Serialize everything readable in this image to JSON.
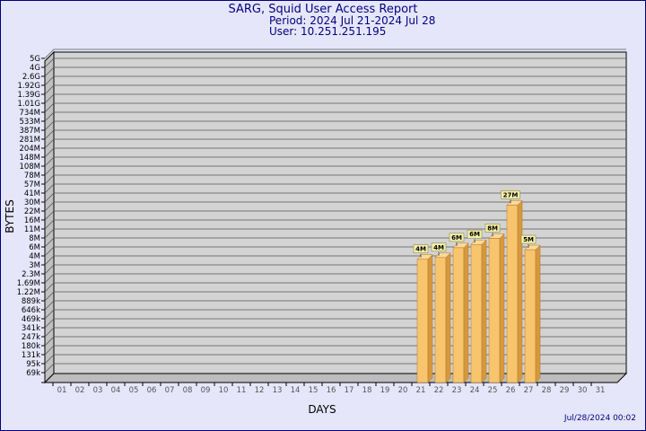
{
  "header": {
    "title": "SARG, Squid User Access Report",
    "period": "Period: 2024 Jul 21-2024 Jul 28",
    "user": "User: 10.251.251.195"
  },
  "footer": {
    "timestamp": "Jul/28/2024 00:02"
  },
  "colors": {
    "background": "#e6e6fa",
    "plot_area": "#d3d3d3",
    "bar_front": "#f8c56e",
    "bar_side": "#d7983d",
    "bar_top": "#fbd999",
    "label_box": "#f5f0a8",
    "title": "#000080"
  },
  "chart_data": {
    "type": "bar",
    "title": "SARG, Squid User Access Report",
    "xlabel": "DAYS",
    "ylabel": "BYTES",
    "y_scale": "log",
    "y_ticks": [
      "69k",
      "95k",
      "131k",
      "180k",
      "247k",
      "341k",
      "469k",
      "646k",
      "889k",
      "1.22M",
      "1.69M",
      "2.3M",
      "3M",
      "4M",
      "6M",
      "8M",
      "11M",
      "16M",
      "22M",
      "30M",
      "41M",
      "57M",
      "78M",
      "108M",
      "148M",
      "204M",
      "281M",
      "387M",
      "533M",
      "734M",
      "1.01G",
      "1.39G",
      "1.92G",
      "2.6G",
      "4G",
      "5G"
    ],
    "categories": [
      "01",
      "02",
      "03",
      "04",
      "05",
      "06",
      "07",
      "08",
      "09",
      "10",
      "11",
      "12",
      "13",
      "14",
      "15",
      "16",
      "17",
      "18",
      "19",
      "20",
      "21",
      "22",
      "23",
      "24",
      "25",
      "26",
      "27",
      "28",
      "29",
      "30",
      "31"
    ],
    "bars": [
      {
        "day": "21",
        "value": 3.6,
        "label": "4M"
      },
      {
        "day": "22",
        "value": 3.8,
        "label": "4M"
      },
      {
        "day": "23",
        "value": 5.8,
        "label": "6M"
      },
      {
        "day": "24",
        "value": 6.5,
        "label": "6M"
      },
      {
        "day": "25",
        "value": 7.9,
        "label": "8M"
      },
      {
        "day": "26",
        "value": 27,
        "label": "27M"
      },
      {
        "day": "27",
        "value": 5.3,
        "label": "5M"
      }
    ],
    "grid": true,
    "legend": "none"
  }
}
